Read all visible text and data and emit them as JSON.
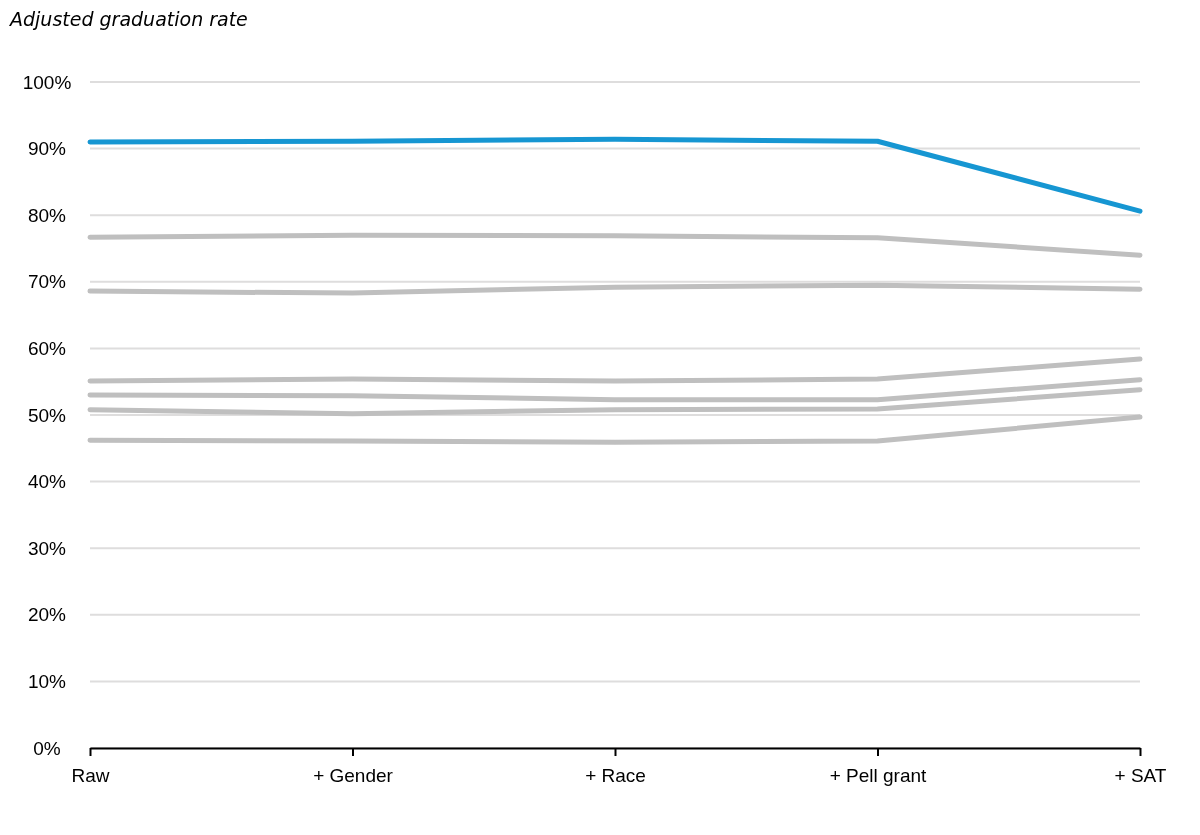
{
  "chart_data": {
    "type": "line",
    "ylabel": "Adjusted graduation rate",
    "categories": [
      "Raw",
      "+ Gender",
      "+ Race",
      "+ Pell grant",
      "+ SAT"
    ],
    "series": [
      {
        "color": "#bfbfbf",
        "values": [
          76.7,
          77.0,
          76.9,
          76.6,
          74.0
        ]
      },
      {
        "color": "#bfbfbf",
        "values": [
          68.6,
          68.3,
          69.2,
          69.5,
          68.9
        ]
      },
      {
        "color": "#bfbfbf",
        "values": [
          55.1,
          55.4,
          55.1,
          55.4,
          58.4
        ]
      },
      {
        "color": "#bfbfbf",
        "values": [
          53.0,
          52.9,
          52.3,
          52.3,
          55.3
        ]
      },
      {
        "color": "#bfbfbf",
        "values": [
          50.8,
          50.2,
          50.8,
          50.9,
          53.8
        ]
      },
      {
        "color": "#bfbfbf",
        "values": [
          46.2,
          46.1,
          45.9,
          46.1,
          49.7
        ]
      },
      {
        "color": "#1696d2",
        "values": [
          91.0,
          91.1,
          91.4,
          91.1,
          80.6
        ]
      }
    ],
    "ylim": [
      0,
      100
    ],
    "yticks": [
      {
        "value": 0,
        "label": "0%"
      },
      {
        "value": 10,
        "label": "10%"
      },
      {
        "value": 20,
        "label": "20%"
      },
      {
        "value": 30,
        "label": "30%"
      },
      {
        "value": 40,
        "label": "40%"
      },
      {
        "value": 50,
        "label": "50%"
      },
      {
        "value": 60,
        "label": "60%"
      },
      {
        "value": 70,
        "label": "70%"
      },
      {
        "value": 80,
        "label": "80%"
      },
      {
        "value": 90,
        "label": "90%"
      },
      {
        "value": 100,
        "label": "100%"
      }
    ],
    "grid": "y",
    "marker": "none",
    "line_style": "solid"
  }
}
